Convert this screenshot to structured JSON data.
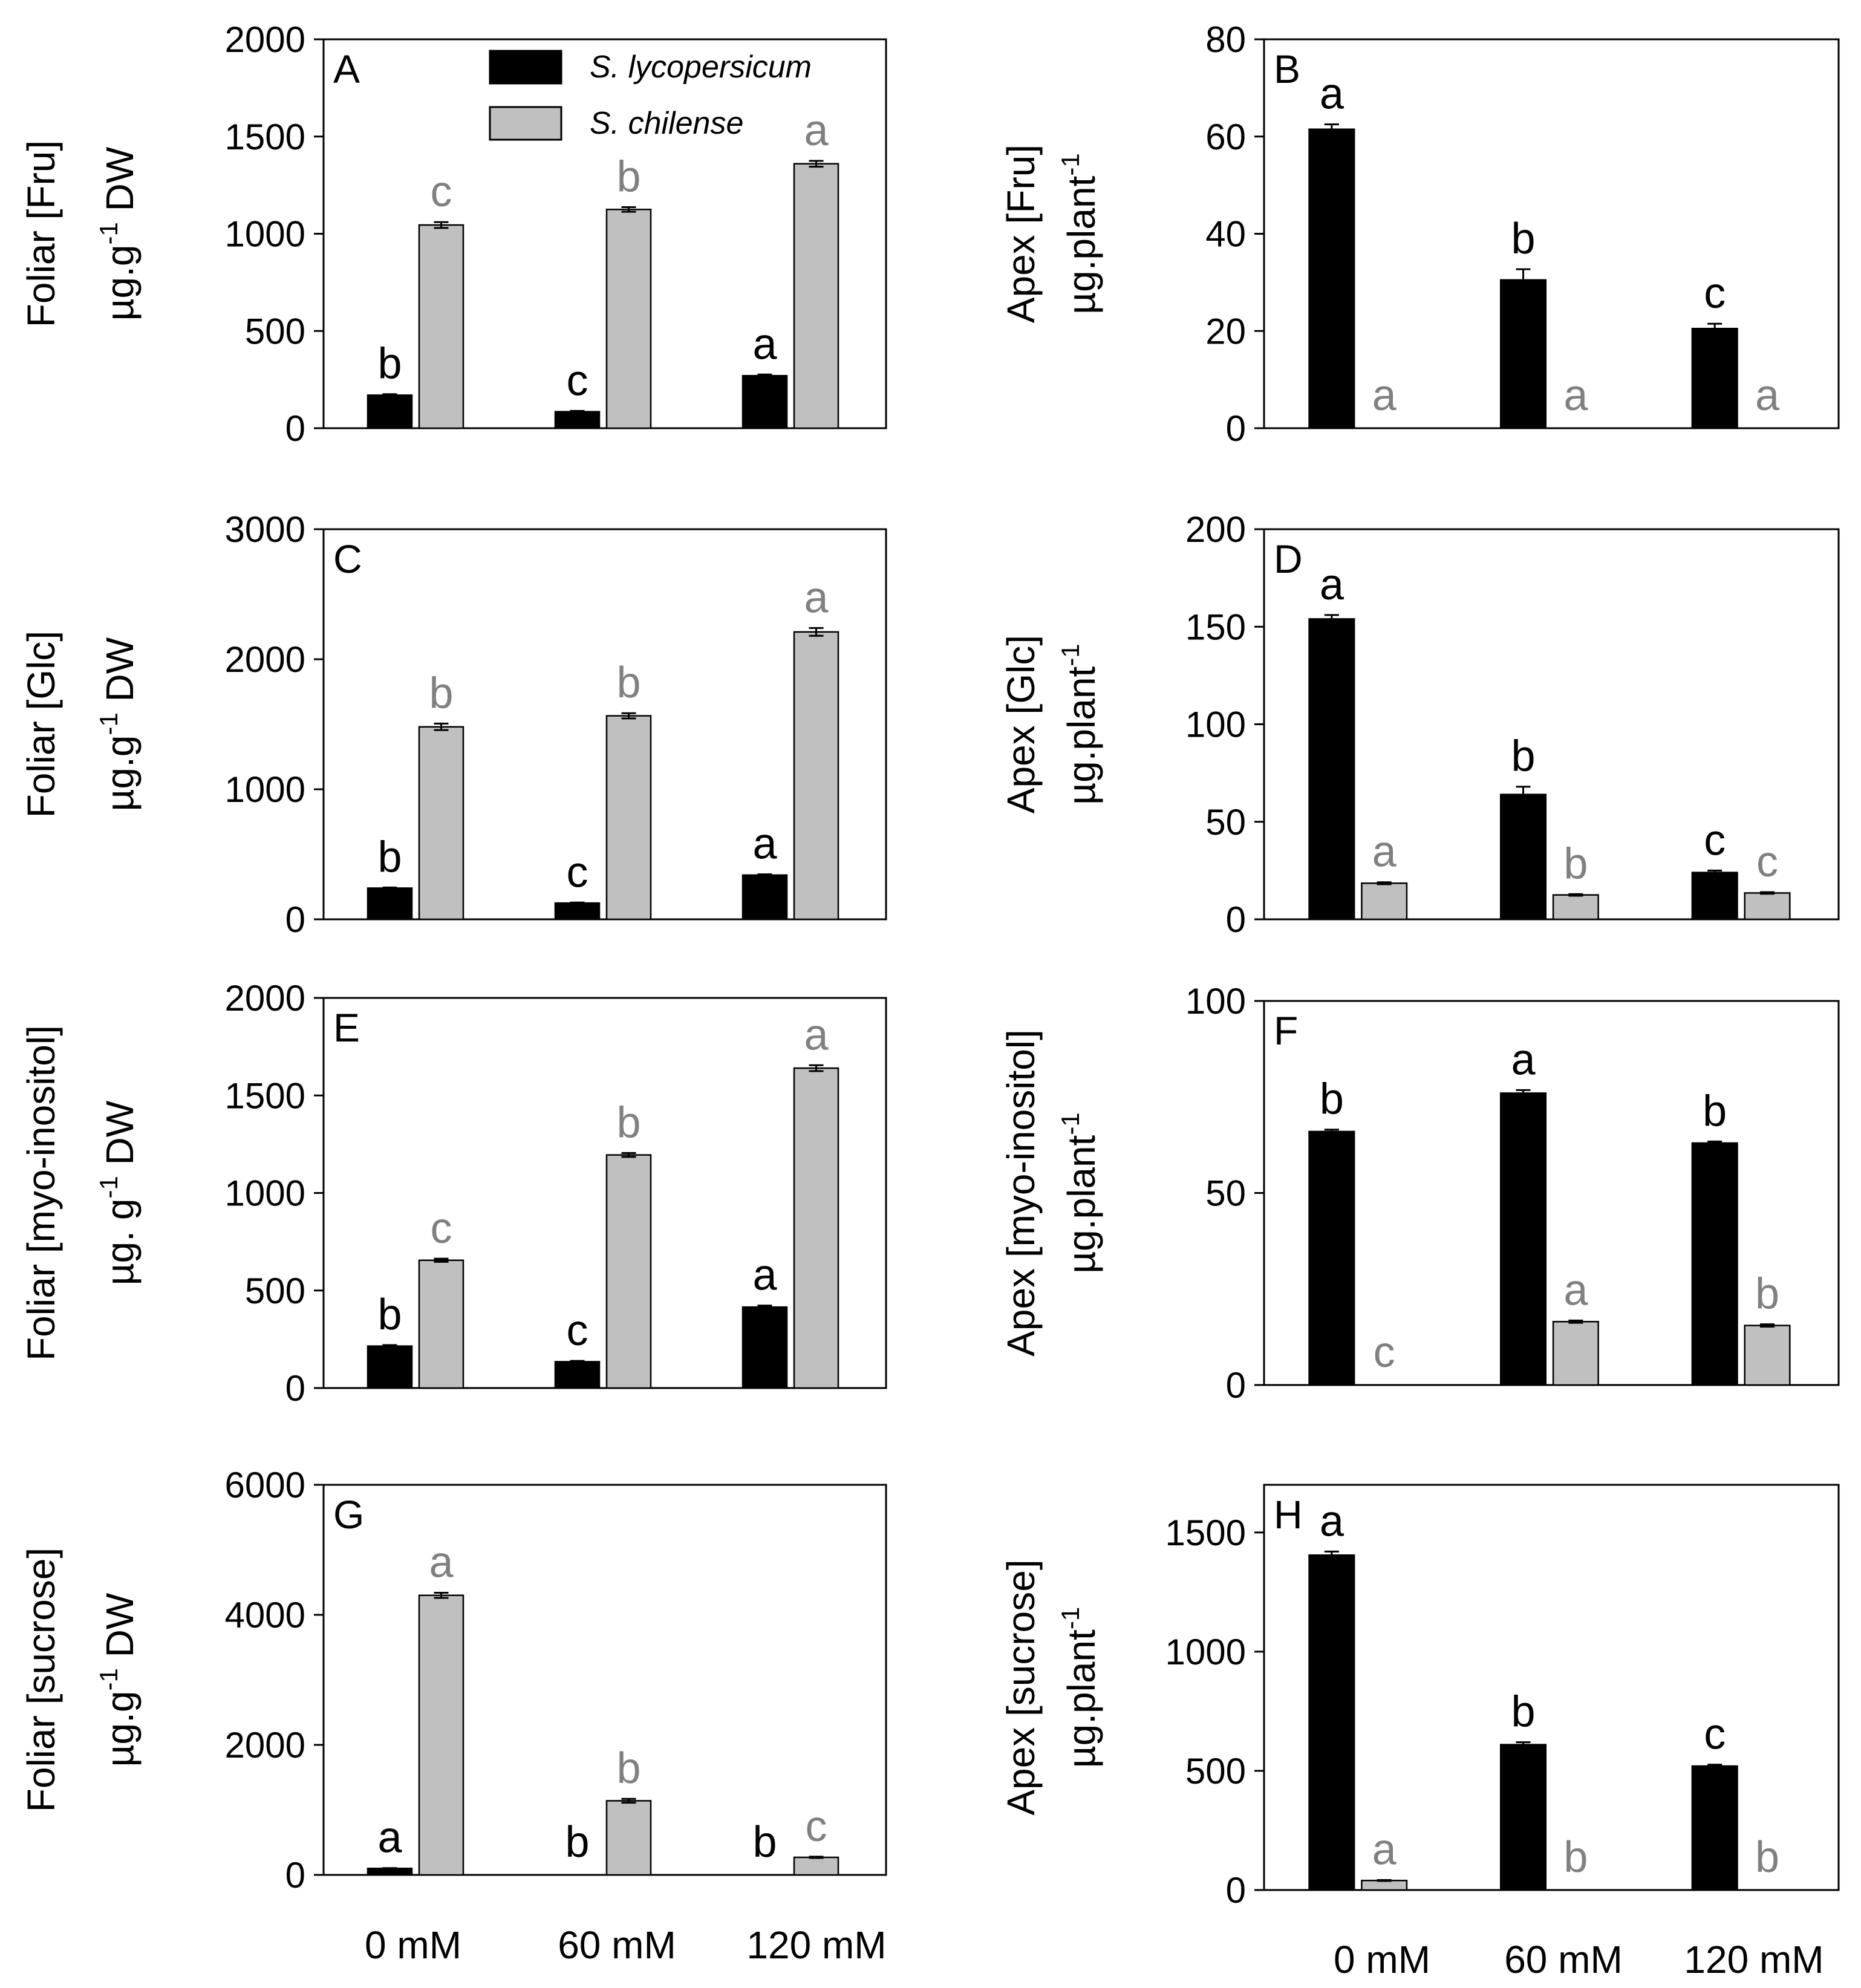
{
  "legend": [
    {
      "label": "S. lycopersicum",
      "color": "#000000"
    },
    {
      "label": "S. chilense",
      "color": "#c0c0c0"
    }
  ],
  "colors": {
    "lyco": "#000000",
    "chil": "#c0c0c0",
    "chil_text": "#808080"
  },
  "categories": [
    "0 mM",
    "60 mM",
    "120 mM"
  ],
  "chart_data": [
    {
      "type": "bar",
      "panel": "A",
      "ylabel1": "Foliar [Fru]",
      "ylabel2_pre": "µg.g",
      "ylabel2_sup": "-1",
      "ylabel2_post": " DW",
      "ylim": [
        0,
        2000
      ],
      "yticks": [
        0,
        500,
        1000,
        1500,
        2000
      ],
      "categories": [
        "0 mM",
        "60 mM",
        "120 mM"
      ],
      "series": [
        {
          "name": "S. lycopersicum",
          "values": [
            170,
            85,
            270
          ],
          "err": [
            5,
            4,
            6
          ],
          "letters": [
            "b",
            "c",
            "a"
          ]
        },
        {
          "name": "S. chilense",
          "values": [
            1045,
            1125,
            1360
          ],
          "err": [
            15,
            12,
            15
          ],
          "letters": [
            "c",
            "b",
            "a"
          ]
        }
      ]
    },
    {
      "type": "bar",
      "panel": "B",
      "ylabel1": "Apex [Fru]",
      "ylabel2_pre": "µg.plant",
      "ylabel2_sup": "-1",
      "ylabel2_post": "",
      "ylim": [
        0,
        80
      ],
      "yticks": [
        0,
        20,
        40,
        60,
        80
      ],
      "categories": [
        "0 mM",
        "60 mM",
        "120 mM"
      ],
      "series": [
        {
          "name": "S. lycopersicum",
          "values": [
            61.5,
            30.5,
            20.5
          ],
          "err": [
            1,
            2.2,
            1
          ],
          "letters": [
            "a",
            "b",
            "c"
          ]
        },
        {
          "name": "S. chilense",
          "values": [
            0,
            0,
            0
          ],
          "err": [
            0,
            0,
            0
          ],
          "letters": [
            "a",
            "a",
            "a"
          ]
        }
      ]
    },
    {
      "type": "bar",
      "panel": "C",
      "ylabel1": "Foliar [Glc]",
      "ylabel2_pre": "µg.g",
      "ylabel2_sup": "-1",
      "ylabel2_post": " DW",
      "ylim": [
        0,
        3000
      ],
      "yticks": [
        0,
        1000,
        2000,
        3000
      ],
      "categories": [
        "0 mM",
        "60 mM",
        "120 mM"
      ],
      "series": [
        {
          "name": "S. lycopersicum",
          "values": [
            240,
            125,
            340
          ],
          "err": [
            5,
            4,
            6
          ],
          "letters": [
            "b",
            "c",
            "a"
          ]
        },
        {
          "name": "S. chilense",
          "values": [
            1480,
            1565,
            2210
          ],
          "err": [
            25,
            20,
            30
          ],
          "letters": [
            "b",
            "b",
            "a"
          ]
        }
      ]
    },
    {
      "type": "bar",
      "panel": "D",
      "ylabel1": "Apex [Glc]",
      "ylabel2_pre": "µg.plant",
      "ylabel2_sup": "-1",
      "ylabel2_post": "",
      "ylim": [
        0,
        200
      ],
      "yticks": [
        0,
        50,
        100,
        150,
        200
      ],
      "categories": [
        "0 mM",
        "60 mM",
        "120 mM"
      ],
      "series": [
        {
          "name": "S. lycopersicum",
          "values": [
            154,
            64,
            24
          ],
          "err": [
            2,
            4,
            1
          ],
          "letters": [
            "a",
            "b",
            "c"
          ]
        },
        {
          "name": "S. chilense",
          "values": [
            18.5,
            12.5,
            13.5
          ],
          "err": [
            0.5,
            0.4,
            0.4
          ],
          "letters": [
            "a",
            "b",
            "c"
          ]
        }
      ]
    },
    {
      "type": "bar",
      "panel": "E",
      "ylabel1": "Foliar [myo-inositol]",
      "ylabel2_pre": "µg. g",
      "ylabel2_sup": "-1",
      "ylabel2_post": " DW",
      "ylim": [
        0,
        2000
      ],
      "yticks": [
        0,
        500,
        1000,
        1500,
        2000
      ],
      "categories": [
        "0 mM",
        "60 mM",
        "120 mM"
      ],
      "series": [
        {
          "name": "S. lycopersicum",
          "values": [
            215,
            135,
            415
          ],
          "err": [
            5,
            4,
            8
          ],
          "letters": [
            "b",
            "c",
            "a"
          ]
        },
        {
          "name": "S. chilense",
          "values": [
            655,
            1195,
            1640
          ],
          "err": [
            8,
            10,
            15
          ],
          "letters": [
            "c",
            "b",
            "a"
          ]
        }
      ]
    },
    {
      "type": "bar",
      "panel": "F",
      "ylabel1": "Apex [myo-inositol]",
      "ylabel2_pre": "µg.plant",
      "ylabel2_sup": "-1",
      "ylabel2_post": "",
      "ylim": [
        0,
        100
      ],
      "yticks": [
        0,
        50,
        100
      ],
      "categories": [
        "0 mM",
        "60 mM",
        "120 mM"
      ],
      "series": [
        {
          "name": "S. lycopersicum",
          "values": [
            66,
            76,
            63
          ],
          "err": [
            0.5,
            0.8,
            0.4
          ],
          "letters": [
            "b",
            "a",
            "b"
          ]
        },
        {
          "name": "S. chilense",
          "values": [
            0,
            16.5,
            15.5
          ],
          "err": [
            0,
            0.3,
            0.3
          ],
          "letters": [
            "c",
            "a",
            "b"
          ]
        }
      ]
    },
    {
      "type": "bar",
      "panel": "G",
      "ylabel1": "Foliar [sucrose]",
      "ylabel2_pre": "µg.g",
      "ylabel2_sup": "-1",
      "ylabel2_post": " DW",
      "ylim": [
        0,
        6000
      ],
      "yticks": [
        0,
        2000,
        4000,
        6000
      ],
      "categories": [
        "0 mM",
        "60 mM",
        "120 mM"
      ],
      "series": [
        {
          "name": "S. lycopersicum",
          "values": [
            100,
            0,
            0
          ],
          "err": [
            5,
            0,
            0
          ],
          "letters": [
            "a",
            "b",
            "b"
          ]
        },
        {
          "name": "S. chilense",
          "values": [
            4300,
            1140,
            270
          ],
          "err": [
            40,
            30,
            10
          ],
          "letters": [
            "a",
            "b",
            "c"
          ]
        }
      ]
    },
    {
      "type": "bar",
      "panel": "H",
      "ylabel1": "Apex [sucrose]",
      "ylabel2_pre": "µg.plant",
      "ylabel2_sup": "-1",
      "ylabel2_post": "",
      "ylim": [
        0,
        1700
      ],
      "yticks": [
        0,
        500,
        1000,
        1500
      ],
      "categories": [
        "0 mM",
        "60 mM",
        "120 mM"
      ],
      "series": [
        {
          "name": "S. lycopersicum",
          "values": [
            1405,
            610,
            520
          ],
          "err": [
            15,
            10,
            6
          ],
          "letters": [
            "a",
            "b",
            "c"
          ]
        },
        {
          "name": "S. chilense",
          "values": [
            40,
            0,
            0
          ],
          "err": [
            2,
            0,
            0
          ],
          "letters": [
            "a",
            "b",
            "b"
          ]
        }
      ]
    }
  ]
}
